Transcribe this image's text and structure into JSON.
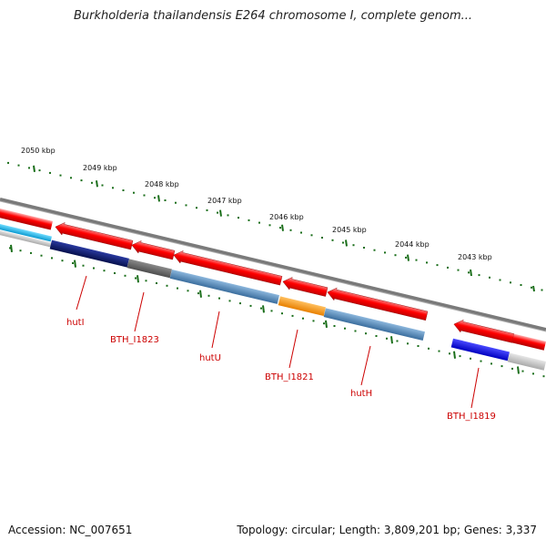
{
  "title": "Burkholderia thailandensis E264 chromosome I, complete genom...",
  "footer": {
    "accession": "Accession: NC_007651",
    "summary": "Topology: circular; Length: 3,809,201 bp; Genes: 3,337"
  },
  "ruler": {
    "ticks": [
      {
        "label": "2050 kbp"
      },
      {
        "label": "2049 kbp"
      },
      {
        "label": "2048 kbp"
      },
      {
        "label": "2047 kbp"
      },
      {
        "label": "2046 kbp"
      },
      {
        "label": "2045 kbp"
      },
      {
        "label": "2044 kbp"
      },
      {
        "label": "2043 kbp"
      }
    ]
  },
  "genes": [
    {
      "label": "hutI"
    },
    {
      "label": "BTH_I1823"
    },
    {
      "label": "hutU"
    },
    {
      "label": "BTH_I1821"
    },
    {
      "label": "hutH"
    },
    {
      "label": "BTH_I1819"
    }
  ],
  "colors": {
    "forward_arrow": "#ff0000",
    "label_text": "#cc0000",
    "tick": "#1a6e1a",
    "backbone": "#808080",
    "navy": "#0a1a78",
    "dark_gray": "#666666",
    "steel_blue": "#4f86b8",
    "orange": "#ff9a00",
    "blue": "#0000ff",
    "light_gray": "#c4c4c4",
    "cyan": "#18b8ec"
  }
}
